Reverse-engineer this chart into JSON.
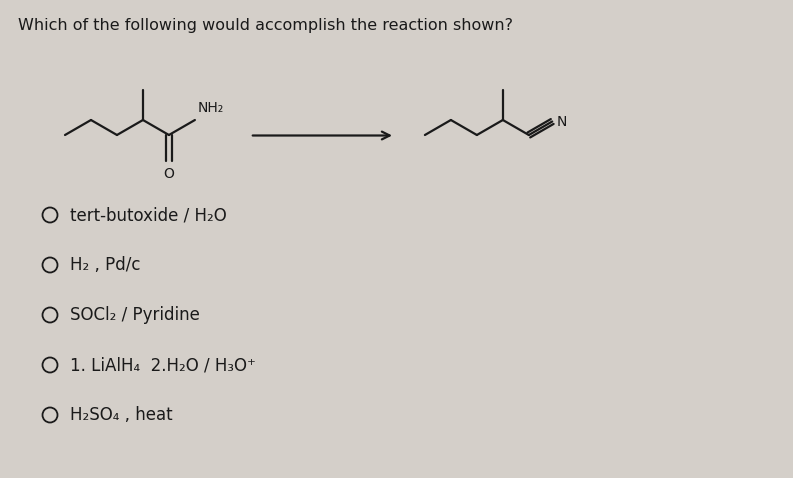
{
  "title": "Which of the following would accomplish the reaction shown?",
  "bg_color": "#d4cfc9",
  "text_color": "#1a1a1a",
  "options": [
    "tert-butoxide / H₂O",
    "H₂ , Pd/c",
    "SOCl₂ / Pyridine",
    "1. LiAlH₄  2.H₂O / H₃O⁺",
    "H₂SO₄ , heat"
  ],
  "title_fontsize": 11.5,
  "option_fontsize": 12,
  "figsize": [
    7.93,
    4.78
  ],
  "dpi": 100,
  "lw": 1.6,
  "mol_scale": 30
}
